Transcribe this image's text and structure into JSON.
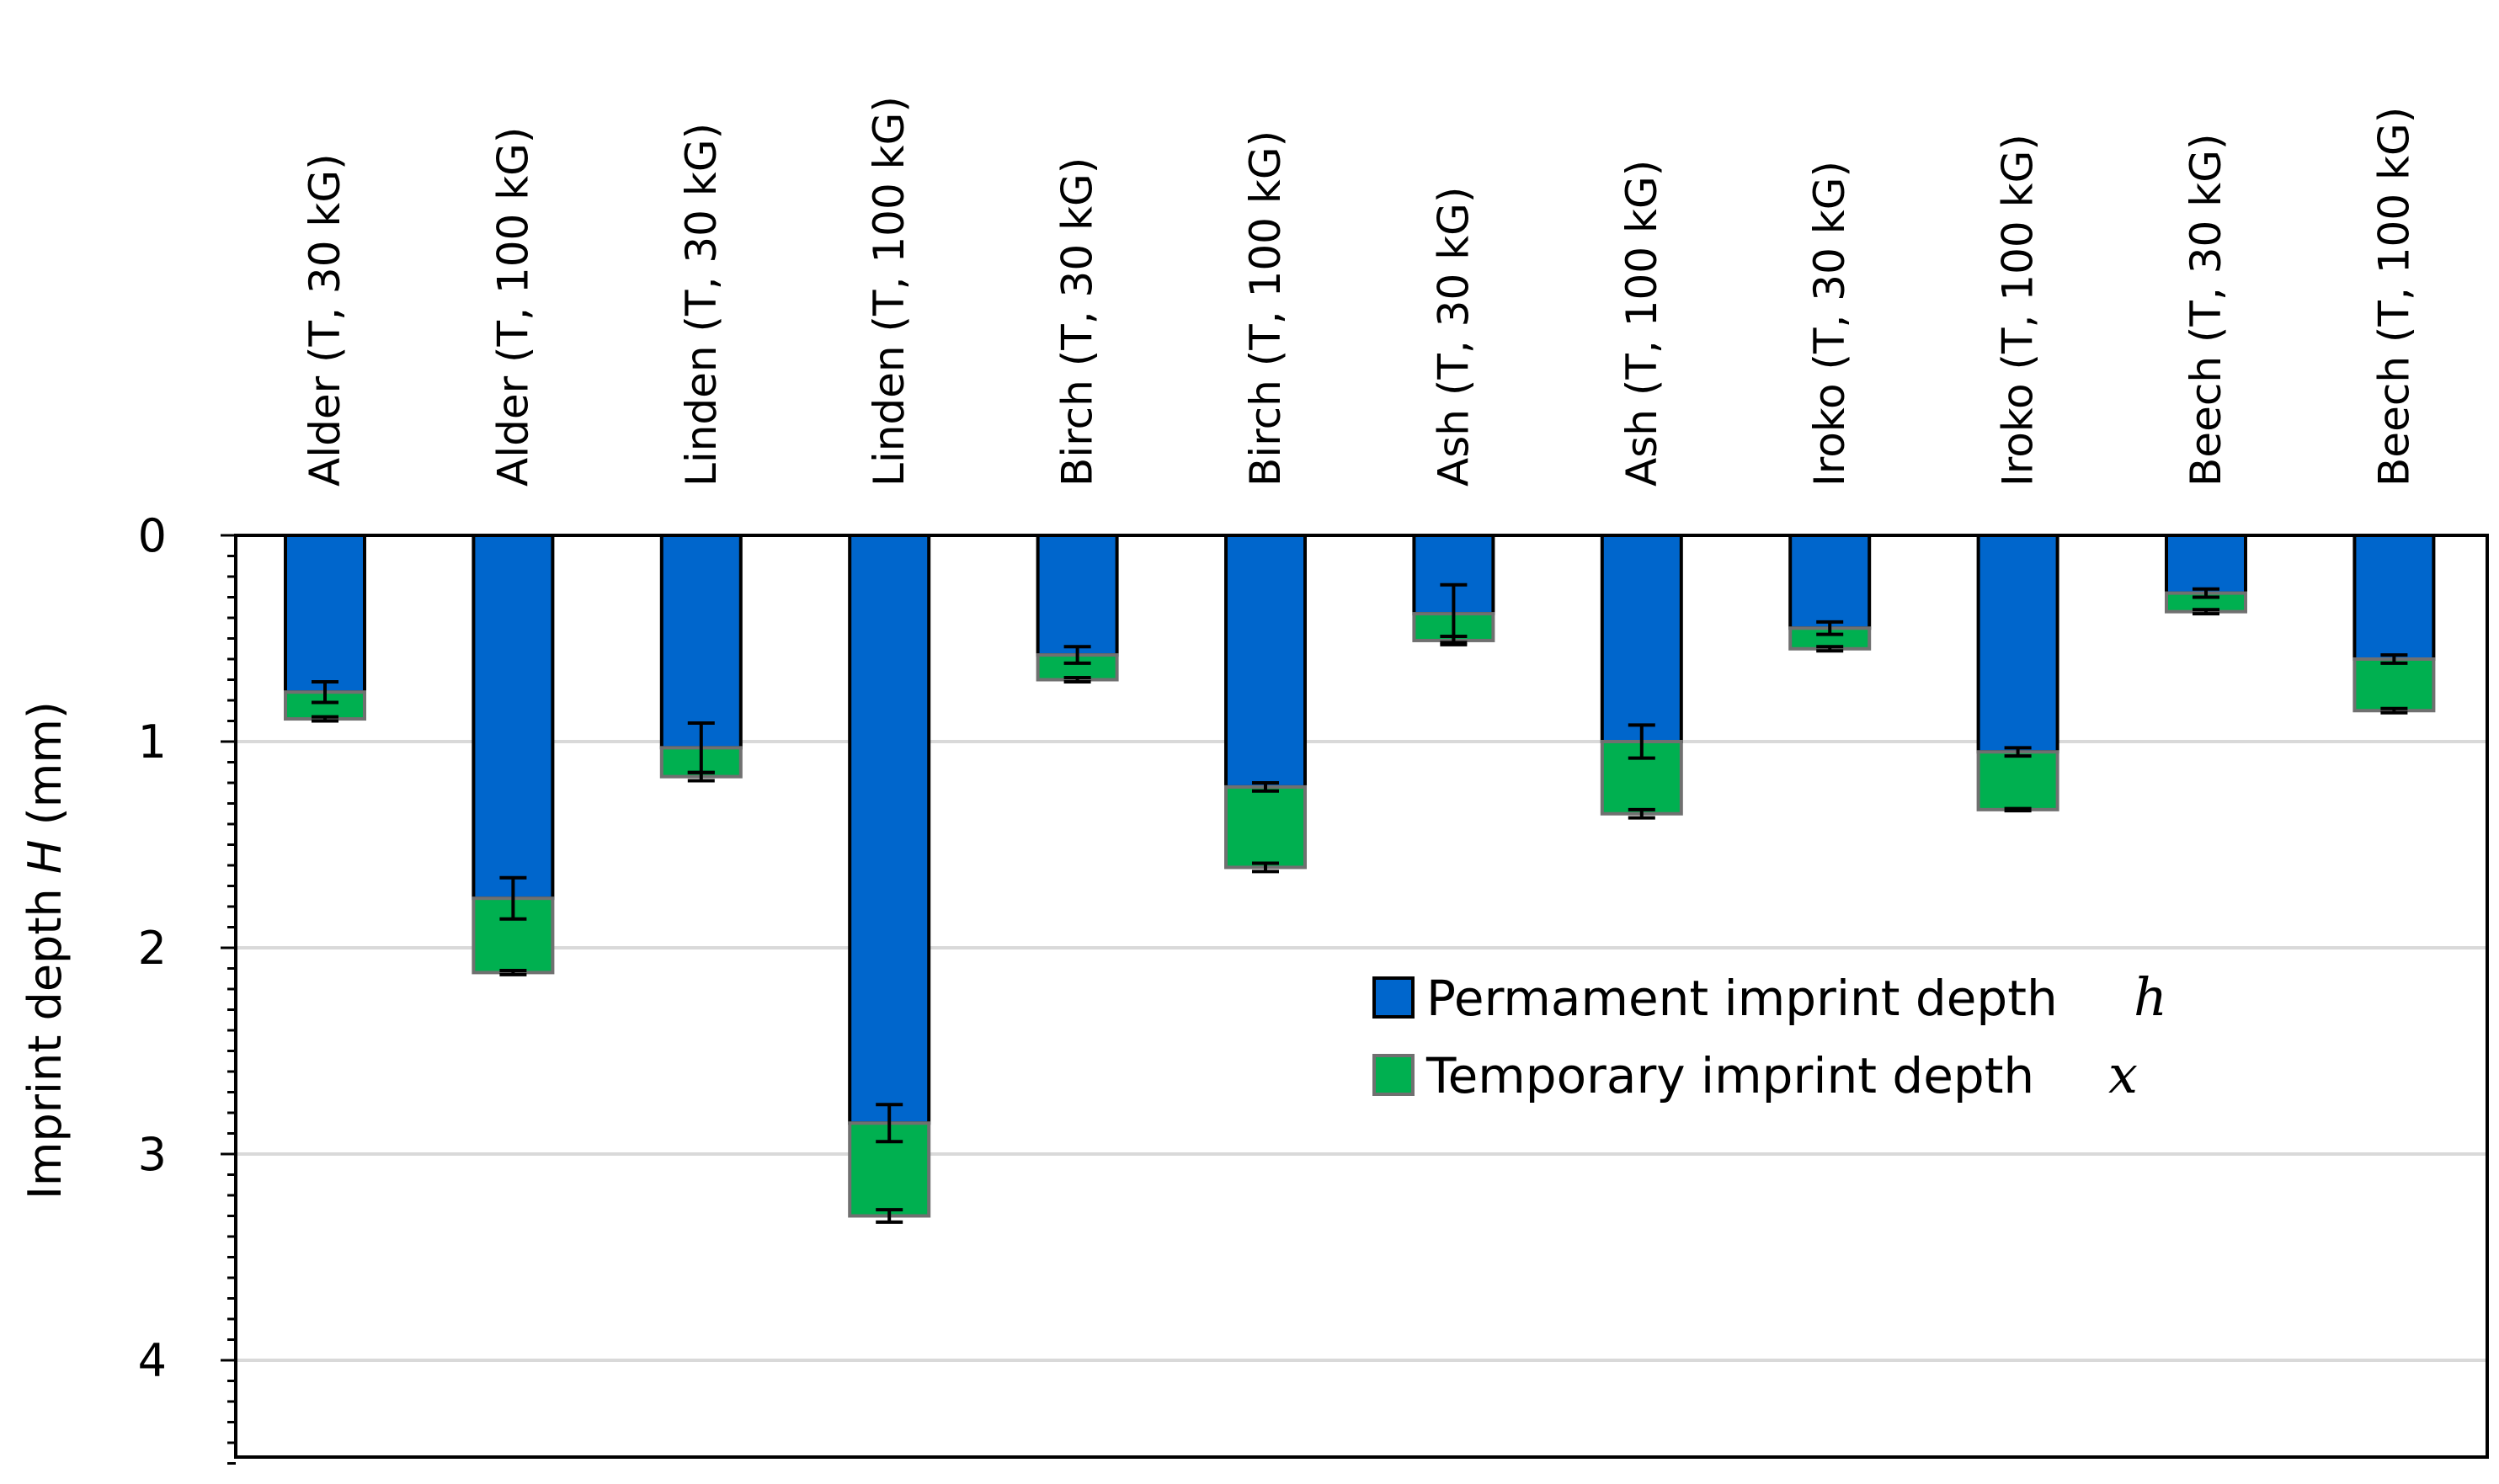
{
  "chart_data": {
    "type": "bar",
    "stacked": true,
    "orientation": "vertical",
    "y_inverted": true,
    "categories": [
      "Alder (T, 30 kG)",
      "Alder (T, 100 kG)",
      "Linden (T, 30 kG)",
      "Linden (T, 100 kG)",
      "Birch (T, 30 kG)",
      "Birch (T, 100 kG)",
      "Ash (T, 30 kG)",
      "Ash (T, 100 kG)",
      "Iroko (T, 30 kG)",
      "Iroko (T, 100 kG)",
      "Beech (T, 30 kG)",
      "Beech (T, 100 kG)"
    ],
    "series": [
      {
        "name": "Permament imprint depth",
        "symbol": "h",
        "color": "#0066CC",
        "values": [
          0.76,
          1.76,
          1.03,
          2.85,
          0.58,
          1.22,
          0.38,
          1.0,
          0.45,
          1.05,
          0.28,
          0.6
        ],
        "error": [
          0.05,
          0.1,
          0.12,
          0.09,
          0.04,
          0.02,
          0.14,
          0.08,
          0.03,
          0.02,
          0.02,
          0.02
        ]
      },
      {
        "name": "Temporary imprint depth",
        "symbol": "x",
        "color": "#00B050",
        "values": [
          0.13,
          0.36,
          0.14,
          0.45,
          0.12,
          0.39,
          0.13,
          0.35,
          0.1,
          0.28,
          0.09,
          0.25
        ],
        "error": [
          0.01,
          0.01,
          0.02,
          0.03,
          0.01,
          0.02,
          0.02,
          0.02,
          0.01,
          0.005,
          0.01,
          0.01
        ]
      }
    ],
    "title": "",
    "xlabel": "",
    "ylabel": "Imprint depth H (mm)",
    "ylabel_main": "Imprint depth ",
    "ylabel_symbol": "H",
    "ylabel_unit": " (mm)",
    "ylim": [
      0,
      4.5
    ],
    "yticks": [
      "0",
      "1",
      "2",
      "3",
      "4"
    ],
    "grid": true,
    "legend_position": "center-right"
  }
}
